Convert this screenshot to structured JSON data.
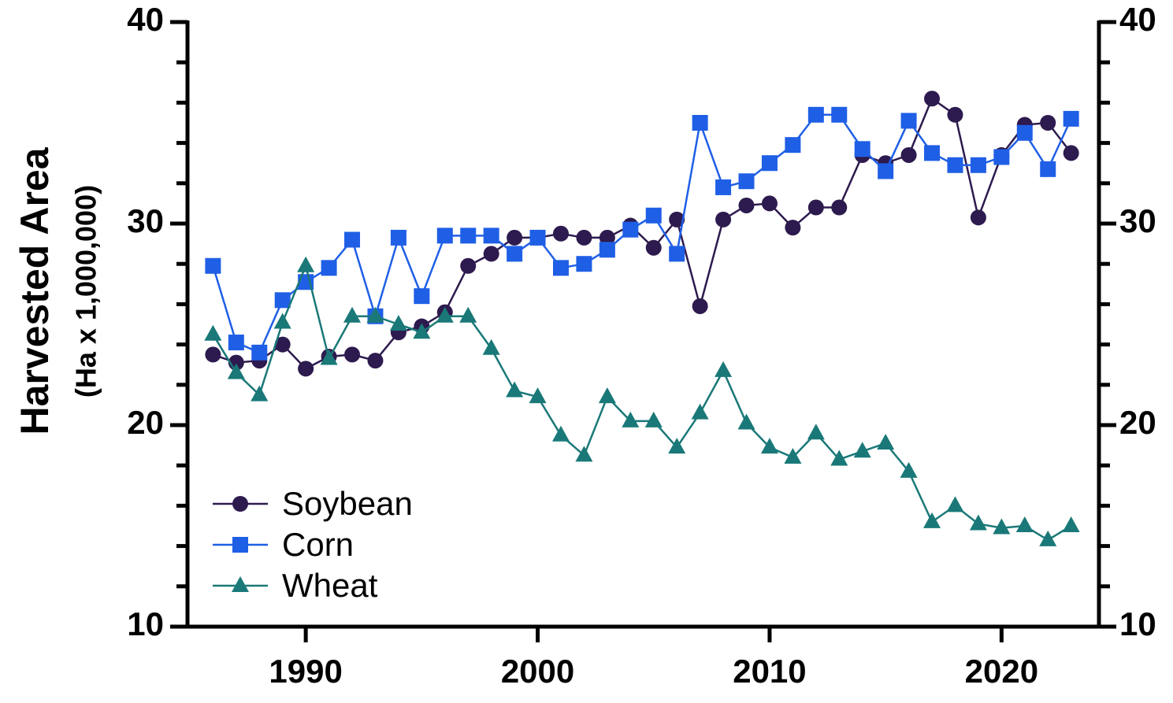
{
  "chart_data": {
    "type": "line",
    "y_label": "Harvested Area",
    "y_sublabel": "(Ha x 1,000,000)",
    "x": [
      1986,
      1987,
      1988,
      1989,
      1990,
      1991,
      1992,
      1993,
      1994,
      1995,
      1996,
      1997,
      1998,
      1999,
      2000,
      2001,
      2002,
      2003,
      2004,
      2005,
      2006,
      2007,
      2008,
      2009,
      2010,
      2011,
      2012,
      2013,
      2014,
      2015,
      2016,
      2017,
      2018,
      2019,
      2020,
      2021,
      2022,
      2023
    ],
    "series": [
      {
        "name": "Soybean",
        "color": "#2d1a4e",
        "marker": "circle",
        "values": [
          23.5,
          23.1,
          23.2,
          24.0,
          22.8,
          23.4,
          23.5,
          23.2,
          24.6,
          24.9,
          25.6,
          27.9,
          28.5,
          29.3,
          29.3,
          29.5,
          29.3,
          29.3,
          29.9,
          28.8,
          30.2,
          25.9,
          30.2,
          30.9,
          31.0,
          29.8,
          30.8,
          30.8,
          33.4,
          33.0,
          33.4,
          36.2,
          35.4,
          30.3,
          33.4,
          34.9,
          35.0,
          33.5
        ]
      },
      {
        "name": "Corn",
        "color": "#1f5fe6",
        "marker": "square",
        "values": [
          27.9,
          24.1,
          23.6,
          26.2,
          27.1,
          27.8,
          29.2,
          25.4,
          29.3,
          26.4,
          29.4,
          29.4,
          29.4,
          28.5,
          29.3,
          27.8,
          28.0,
          28.7,
          29.7,
          30.4,
          28.5,
          35.0,
          31.8,
          32.1,
          33.0,
          33.9,
          35.4,
          35.4,
          33.7,
          32.6,
          35.1,
          33.5,
          32.9,
          32.9,
          33.3,
          34.5,
          32.7,
          35.2
        ]
      },
      {
        "name": "Wheat",
        "color": "#1a7878",
        "marker": "triangle",
        "values": [
          24.5,
          22.6,
          21.5,
          25.1,
          27.9,
          23.3,
          25.4,
          25.4,
          25.0,
          24.6,
          25.4,
          25.4,
          23.8,
          21.7,
          21.4,
          19.5,
          18.5,
          21.4,
          20.2,
          20.2,
          18.9,
          20.6,
          22.7,
          20.1,
          18.9,
          18.4,
          19.6,
          18.3,
          18.7,
          19.1,
          17.7,
          15.2,
          16.0,
          15.1,
          14.9,
          15.0,
          14.3,
          15.0
        ]
      }
    ],
    "xlim": [
      1984.9,
      2024.2
    ],
    "xticks": [
      1990,
      2000,
      2010,
      2020
    ],
    "ylim": [
      10,
      40
    ],
    "yticks": [
      10,
      20,
      30,
      40
    ],
    "yminorticks": [
      12,
      14,
      16,
      18,
      22,
      24,
      26,
      28,
      32,
      34,
      36,
      38
    ],
    "y2lim": [
      10,
      40
    ],
    "y2ticks": [
      10,
      20,
      30,
      40
    ],
    "legend": "lower left"
  }
}
